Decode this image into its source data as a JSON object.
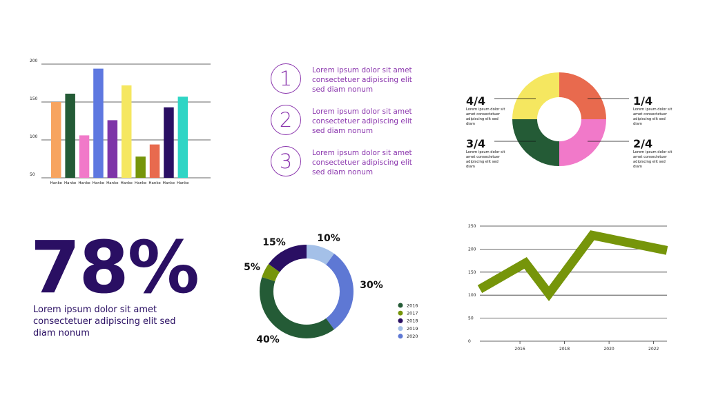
{
  "steps": [
    {
      "number": "1",
      "text": "Lorem ipsum dolor sit amet consectetuer adipiscing elit sed diam nonum"
    },
    {
      "number": "2",
      "text": "Lorem ipsum dolor sit amet consectetuer adipiscing elit sed diam nonum"
    },
    {
      "number": "3",
      "text": "Lorem ipsum dolor sit amet consectetuer adipiscing elit sed diam nonum"
    }
  ],
  "stat": {
    "value": "78%",
    "caption": "Lorem ipsum dolor sit amet consectetuer adipiscing elit sed diam nonum"
  },
  "chart_data": [
    {
      "type": "bar",
      "categories": [
        "Hanke",
        "Hanke",
        "Hanke",
        "Hanke",
        "Hanke",
        "Hanke",
        "Hanke",
        "Hanke",
        "Hanke",
        "Hanke"
      ],
      "values": [
        150,
        161,
        106,
        194,
        126,
        172,
        78,
        94,
        143,
        157
      ],
      "colors": [
        "#f7a45f",
        "#245b36",
        "#f179c9",
        "#5e78e0",
        "#7d34a8",
        "#f5e760",
        "#76950a",
        "#e86a4e",
        "#2a0f63",
        "#2fd5c5"
      ],
      "yticks": [
        50,
        100,
        150,
        200
      ],
      "ylim": [
        50,
        200
      ],
      "grid": true
    },
    {
      "type": "pie",
      "variant": "donut",
      "slices": [
        {
          "label": "1/4",
          "value": 25,
          "color": "#e86a4e",
          "text": "Lorem ipsum dolor sit amet consectetuer adipiscing elit sed diam"
        },
        {
          "label": "2/4",
          "value": 25,
          "color": "#f179c9",
          "text": "Lorem ipsum dolor sit amet consectetuer adipiscing elit sed diam"
        },
        {
          "label": "3/4",
          "value": 25,
          "color": "#245b36",
          "text": "Lorem ipsum dolor sit amet consectetuer adipiscing elit sed diam"
        },
        {
          "label": "4/4",
          "value": 25,
          "color": "#f5e760",
          "text": "Lorem ipsum dolor sit amet consectetuer adipiscing elit sed diam"
        }
      ]
    },
    {
      "type": "pie",
      "variant": "donut",
      "slices": [
        {
          "label": "10%",
          "value": 10,
          "color": "#a4c0e8",
          "legend": "2019"
        },
        {
          "label": "30%",
          "value": 30,
          "color": "#5e78d4",
          "legend": "2020"
        },
        {
          "label": "40%",
          "value": 40,
          "color": "#245b36",
          "legend": "2016"
        },
        {
          "label": "5%",
          "value": 5,
          "color": "#76950a",
          "legend": "2017"
        },
        {
          "label": "15%",
          "value": 15,
          "color": "#2a0f63",
          "legend": "2018"
        }
      ],
      "legend": [
        {
          "name": "2016",
          "color": "#245b36"
        },
        {
          "name": "2017",
          "color": "#76950a"
        },
        {
          "name": "2018",
          "color": "#2a0f63"
        },
        {
          "name": "2019",
          "color": "#a4c0e8"
        },
        {
          "name": "2020",
          "color": "#5e78d4"
        }
      ],
      "legend_position": "right"
    },
    {
      "type": "line",
      "x": [
        2014.2,
        2016.25,
        2017.3,
        2019.25,
        2022.6
      ],
      "y": [
        113,
        170,
        103,
        230,
        197
      ],
      "color": "#76950a",
      "xticks": [
        2016,
        2018,
        2020,
        2022
      ],
      "yticks": [
        0,
        50,
        100,
        150,
        200,
        250
      ],
      "xlim": [
        2014.2,
        2022.6
      ],
      "ylim": [
        0,
        250
      ],
      "grid": true
    }
  ]
}
